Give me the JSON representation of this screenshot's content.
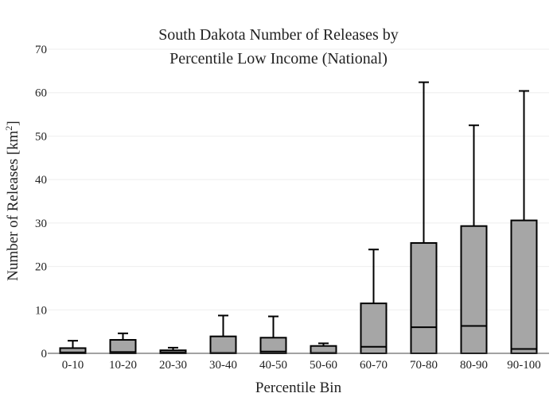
{
  "chart_data": {
    "type": "box",
    "title_lines": [
      "South Dakota Number of Releases by",
      "Percentile Low Income (National)"
    ],
    "xlabel": "Percentile Bin",
    "ylabel_main": "Number of Releases  [km",
    "ylabel_sup": "2",
    "ylabel_close": "]",
    "ylim": [
      0,
      70
    ],
    "yticks": [
      0,
      10,
      20,
      30,
      40,
      50,
      60,
      70
    ],
    "grid": true,
    "colors": {
      "box_fill": "#a6a6a6",
      "box_stroke": "#000000",
      "grid": "#eeeeee",
      "axis": "#444444"
    },
    "categories": [
      "0-10",
      "10-20",
      "20-30",
      "30-40",
      "40-50",
      "50-60",
      "60-70",
      "70-80",
      "80-90",
      "90-100"
    ],
    "boxes": [
      {
        "low": 0,
        "q1": 0,
        "median": 0.2,
        "q3": 1.2,
        "high": 2.9
      },
      {
        "low": 0,
        "q1": 0,
        "median": 0.3,
        "q3": 3.1,
        "high": 4.6
      },
      {
        "low": 0,
        "q1": 0,
        "median": 0.2,
        "q3": 0.7,
        "high": 1.3
      },
      {
        "low": 0,
        "q1": 0,
        "median": 0.1,
        "q3": 3.9,
        "high": 8.7
      },
      {
        "low": 0,
        "q1": 0,
        "median": 0.4,
        "q3": 3.6,
        "high": 8.5
      },
      {
        "low": 0,
        "q1": 0,
        "median": 0.1,
        "q3": 1.7,
        "high": 2.3
      },
      {
        "low": 0,
        "q1": 0,
        "median": 1.5,
        "q3": 11.5,
        "high": 23.9
      },
      {
        "low": 0,
        "q1": 0,
        "median": 6.0,
        "q3": 25.4,
        "high": 62.4
      },
      {
        "low": 0,
        "q1": 0,
        "median": 6.3,
        "q3": 29.3,
        "high": 52.5
      },
      {
        "low": 0,
        "q1": 0,
        "median": 1.0,
        "q3": 30.6,
        "high": 60.4
      }
    ]
  }
}
